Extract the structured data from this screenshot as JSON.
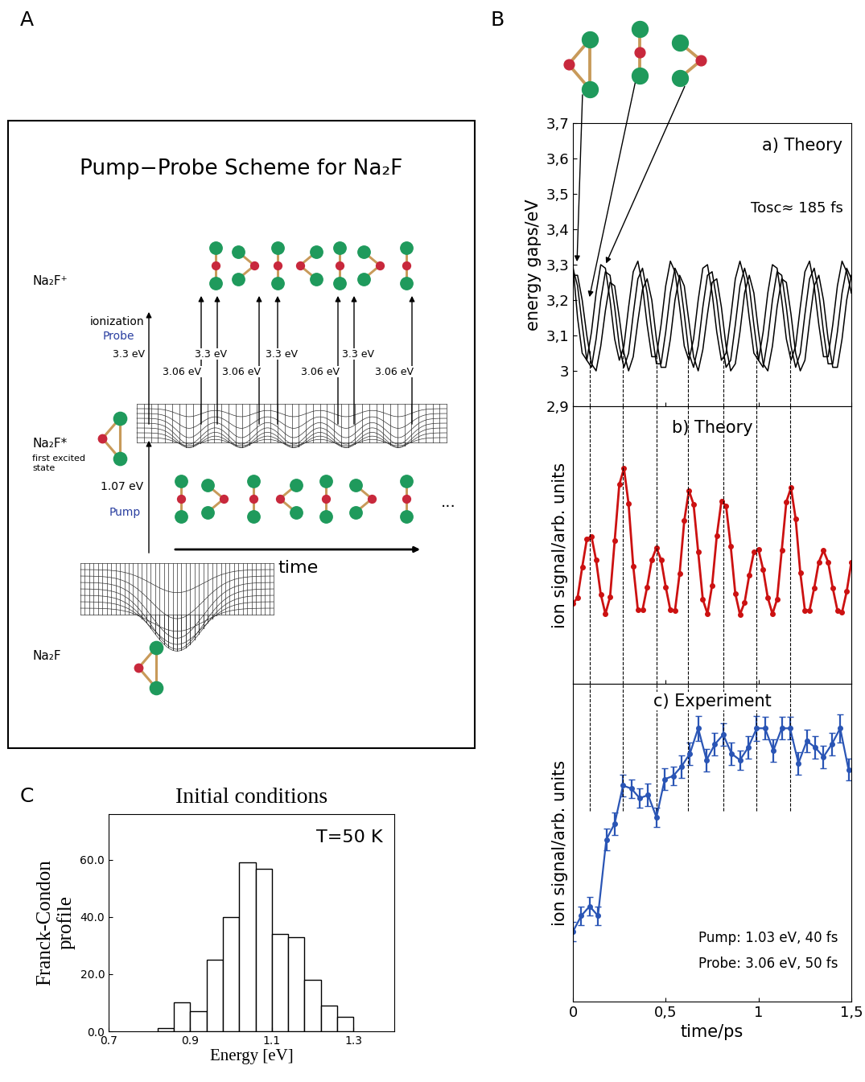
{
  "panel_labels": [
    "A",
    "B",
    "C"
  ],
  "diagram": {
    "title": "Pump−Probe Scheme for Na₂F",
    "states": {
      "ion": "Na₂F⁺",
      "excited": "Na₂F*",
      "excited_note": "first excited\nstate",
      "ground": "Na₂F"
    },
    "probe": {
      "label": "ionization",
      "name": "Probe",
      "energy_labels": [
        "3.3 eV",
        "3.06 eV",
        "3.3 eV",
        "3.06 eV",
        "3.3 eV",
        "3.06 eV",
        "3.3 eV",
        "3.06 eV"
      ]
    },
    "pump": {
      "energy_label": "1.07 eV",
      "name": "Pump"
    },
    "time_label": "time",
    "continuation": "..."
  },
  "guide_lines_x": [
    0.09,
    0.27,
    0.45,
    0.62,
    0.81,
    0.99,
    1.17
  ],
  "chart_data": [
    {
      "type": "line",
      "title": "a) Theory",
      "annotations": [
        "Tosc≈ 185 fs"
      ],
      "y_label": "energy gaps/eV",
      "x": [
        0,
        0.025,
        0.05,
        0.075,
        0.1,
        0.125,
        0.15,
        0.175,
        0.2,
        0.225,
        0.25,
        0.275,
        0.3,
        0.325,
        0.35,
        0.375,
        0.4,
        0.425,
        0.45,
        0.475,
        0.5,
        0.525,
        0.55,
        0.575,
        0.6,
        0.625,
        0.65,
        0.675,
        0.7,
        0.725,
        0.75,
        0.775,
        0.8,
        0.825,
        0.85,
        0.875,
        0.9,
        0.925,
        0.95,
        0.975,
        1.0,
        1.025,
        1.05,
        1.075,
        1.1,
        1.125,
        1.15,
        1.175,
        1.2,
        1.225,
        1.25,
        1.275,
        1.3,
        1.325,
        1.35,
        1.375,
        1.4,
        1.425,
        1.45,
        1.475,
        1.5
      ],
      "series": [
        {
          "color": "#000000",
          "values": [
            3.29,
            3.24,
            3.13,
            3.03,
            3.01,
            3.09,
            3.2,
            3.28,
            3.27,
            3.18,
            3.07,
            3.01,
            3.05,
            3.16,
            3.26,
            3.29,
            3.22,
            3.11,
            3.02,
            3.02,
            3.11,
            3.22,
            3.29,
            3.26,
            3.16,
            3.05,
            3.01,
            3.07,
            3.18,
            3.27,
            3.28,
            3.2,
            3.09,
            3.01,
            3.03,
            3.13,
            3.24,
            3.29,
            3.24,
            3.13,
            3.03,
            3.01,
            3.09,
            3.2,
            3.28,
            3.27,
            3.18,
            3.07,
            3.01,
            3.05,
            3.16,
            3.26,
            3.29,
            3.22,
            3.11,
            3.02,
            3.02,
            3.11,
            3.22,
            3.29,
            3.26
          ]
        },
        {
          "color": "#000000",
          "values": [
            3.27,
            3.27,
            3.2,
            3.1,
            3.02,
            3.0,
            3.07,
            3.17,
            3.25,
            3.24,
            3.15,
            3.05,
            3.0,
            3.04,
            3.14,
            3.23,
            3.26,
            3.2,
            3.09,
            3.01,
            3.01,
            3.09,
            3.2,
            3.27,
            3.24,
            3.14,
            3.04,
            3.0,
            3.06,
            3.16,
            3.25,
            3.26,
            3.18,
            3.07,
            3.0,
            3.02,
            3.11,
            3.22,
            3.27,
            3.22,
            3.11,
            3.02,
            3.0,
            3.07,
            3.18,
            3.26,
            3.25,
            3.16,
            3.05,
            3.0,
            3.03,
            3.14,
            3.24,
            3.27,
            3.2,
            3.09,
            3.01,
            3.01,
            3.09,
            3.2,
            3.27
          ]
        },
        {
          "color": "#000000",
          "values": [
            3.3,
            3.15,
            3.05,
            3.03,
            3.11,
            3.22,
            3.3,
            3.29,
            3.2,
            3.09,
            3.03,
            3.07,
            3.18,
            3.28,
            3.31,
            3.24,
            3.13,
            3.04,
            3.04,
            3.13,
            3.24,
            3.31,
            3.28,
            3.18,
            3.07,
            3.03,
            3.09,
            3.2,
            3.29,
            3.3,
            3.22,
            3.11,
            3.03,
            3.05,
            3.15,
            3.26,
            3.31,
            3.26,
            3.15,
            3.05,
            3.03,
            3.11,
            3.22,
            3.3,
            3.29,
            3.2,
            3.09,
            3.03,
            3.07,
            3.18,
            3.28,
            3.31,
            3.24,
            3.13,
            3.04,
            3.04,
            3.13,
            3.24,
            3.31,
            3.28,
            3.22
          ]
        }
      ],
      "xlim": [
        0,
        1.5
      ],
      "xticks": [
        0,
        {
          "value": 0.5,
          "label": "0,5"
        },
        1,
        {
          "value": 1.5,
          "label": "1,5"
        }
      ],
      "ylim": [
        2.9,
        3.7
      ],
      "yticks": [
        {
          "value": 2.9,
          "label": "2,9"
        },
        3,
        {
          "value": 3.1,
          "label": "3,1"
        },
        {
          "value": 3.2,
          "label": "3,2"
        },
        {
          "value": 3.3,
          "label": "3,3"
        },
        {
          "value": 3.4,
          "label": "3,4"
        },
        {
          "value": 3.5,
          "label": "3,5"
        },
        {
          "value": 3.6,
          "label": "3,6"
        },
        {
          "value": 3.7,
          "label": "3,7"
        }
      ],
      "tick_labels": "y"
    },
    {
      "type": "line",
      "title": "b) Theory",
      "y_label": "ion signal/arb. units",
      "x": [
        0,
        0.025,
        0.05,
        0.075,
        0.1,
        0.125,
        0.15,
        0.175,
        0.2,
        0.225,
        0.25,
        0.275,
        0.3,
        0.325,
        0.35,
        0.375,
        0.4,
        0.425,
        0.45,
        0.475,
        0.5,
        0.525,
        0.55,
        0.575,
        0.6,
        0.625,
        0.65,
        0.675,
        0.7,
        0.725,
        0.75,
        0.775,
        0.8,
        0.825,
        0.85,
        0.875,
        0.9,
        0.925,
        0.95,
        0.975,
        1.0,
        1.025,
        1.05,
        1.075,
        1.1,
        1.125,
        1.15,
        1.175,
        1.2,
        1.225,
        1.25,
        1.275,
        1.3,
        1.325,
        1.35,
        1.375,
        1.4,
        1.425,
        1.45,
        1.475,
        1.5
      ],
      "series": [
        {
          "color": "#cc1111",
          "marker": "circle",
          "values": [
            2.9,
            3.1,
            4.2,
            5.21,
            5.31,
            4.45,
            3.23,
            2.52,
            3.12,
            5.15,
            7.18,
            7.76,
            6.48,
            4.24,
            2.66,
            2.66,
            3.49,
            4.47,
            4.9,
            4.47,
            3.49,
            2.66,
            2.64,
            3.98,
            5.88,
            6.96,
            6.47,
            4.75,
            3.03,
            2.53,
            3.55,
            5.32,
            6.57,
            6.42,
            4.97,
            3.25,
            2.5,
            2.93,
            3.91,
            4.74,
            4.83,
            4.11,
            3.1,
            2.52,
            3.04,
            4.8,
            6.56,
            7.06,
            5.95,
            4.01,
            2.64,
            2.65,
            3.45,
            4.39,
            4.8,
            4.39,
            3.45,
            2.65,
            2.58,
            3.32,
            4.38
          ]
        }
      ],
      "xlim": [
        0,
        1.5
      ],
      "xticks": [
        0,
        {
          "value": 0.5,
          "label": "0,5"
        },
        1,
        {
          "value": 1.5,
          "label": "1,5"
        }
      ],
      "ylim": [
        0,
        10
      ],
      "yticks": [],
      "tick_labels": false
    },
    {
      "type": "line",
      "title": "c) Experiment",
      "y_label": "ion signal/arb. units",
      "x_label": "time/ps",
      "annotations": [
        "Pump: 1.03 eV, 40 fs",
        "Probe: 3.06 eV, 50 fs"
      ],
      "x": [
        0,
        0.045,
        0.09,
        0.135,
        0.18,
        0.225,
        0.27,
        0.315,
        0.36,
        0.405,
        0.45,
        0.495,
        0.54,
        0.585,
        0.63,
        0.675,
        0.72,
        0.765,
        0.81,
        0.855,
        0.9,
        0.945,
        0.99,
        1.035,
        1.08,
        1.125,
        1.17,
        1.215,
        1.26,
        1.305,
        1.35,
        1.395,
        1.44,
        1.485
      ],
      "series": [
        {
          "color": "#2a55b5",
          "marker": "circle",
          "values": [
            2.2,
            2.7,
            3.0,
            2.7,
            5.1,
            5.6,
            6.8,
            6.7,
            6.4,
            6.5,
            5.8,
            7.0,
            7.1,
            7.4,
            7.8,
            8.6,
            7.6,
            8.1,
            8.4,
            7.8,
            7.6,
            8.0,
            8.6,
            8.6,
            7.9,
            8.6,
            8.6,
            7.5,
            8.2,
            8.0,
            7.7,
            8.1,
            8.6,
            7.3
          ],
          "errors": [
            0.3,
            0.3,
            0.3,
            0.3,
            0.35,
            0.35,
            0.35,
            0.3,
            0.3,
            0.35,
            0.3,
            0.35,
            0.3,
            0.35,
            0.35,
            0.4,
            0.35,
            0.35,
            0.35,
            0.35,
            0.3,
            0.35,
            0.4,
            0.35,
            0.35,
            0.35,
            0.35,
            0.35,
            0.35,
            0.35,
            0.35,
            0.35,
            0.45,
            0.35
          ]
        }
      ],
      "xlim": [
        0,
        1.5
      ],
      "xticks": [
        0,
        {
          "value": 0.5,
          "label": "0,5"
        },
        1,
        {
          "value": 1.5,
          "label": "1,5"
        }
      ],
      "ylim": [
        0,
        10
      ],
      "yticks": [],
      "tick_labels": "x"
    },
    {
      "type": "histogram",
      "title": "Initial conditions",
      "x_label": "Energy [eV]",
      "y_label": "Franck-Condon\nprofile",
      "annotations": [
        "T=50 K"
      ],
      "bins": [
        0.82,
        0.86,
        0.9,
        0.94,
        0.98,
        1.02,
        1.06,
        1.1,
        1.14,
        1.18,
        1.22,
        1.26,
        1.3
      ],
      "counts": [
        1,
        10,
        7,
        25,
        40,
        59,
        57,
        34,
        33,
        18,
        9,
        5
      ],
      "color": "#ffffff",
      "xlim": [
        0.7,
        1.4
      ],
      "xticks": [
        0.7,
        0.9,
        1.1,
        1.3
      ],
      "ylim": [
        0,
        76
      ],
      "yticks": [
        {
          "value": 0,
          "label": "0.0"
        },
        {
          "value": 20,
          "label": "20.0"
        },
        {
          "value": 40,
          "label": "40.0"
        },
        {
          "value": 60,
          "label": "60.0"
        }
      ]
    }
  ]
}
